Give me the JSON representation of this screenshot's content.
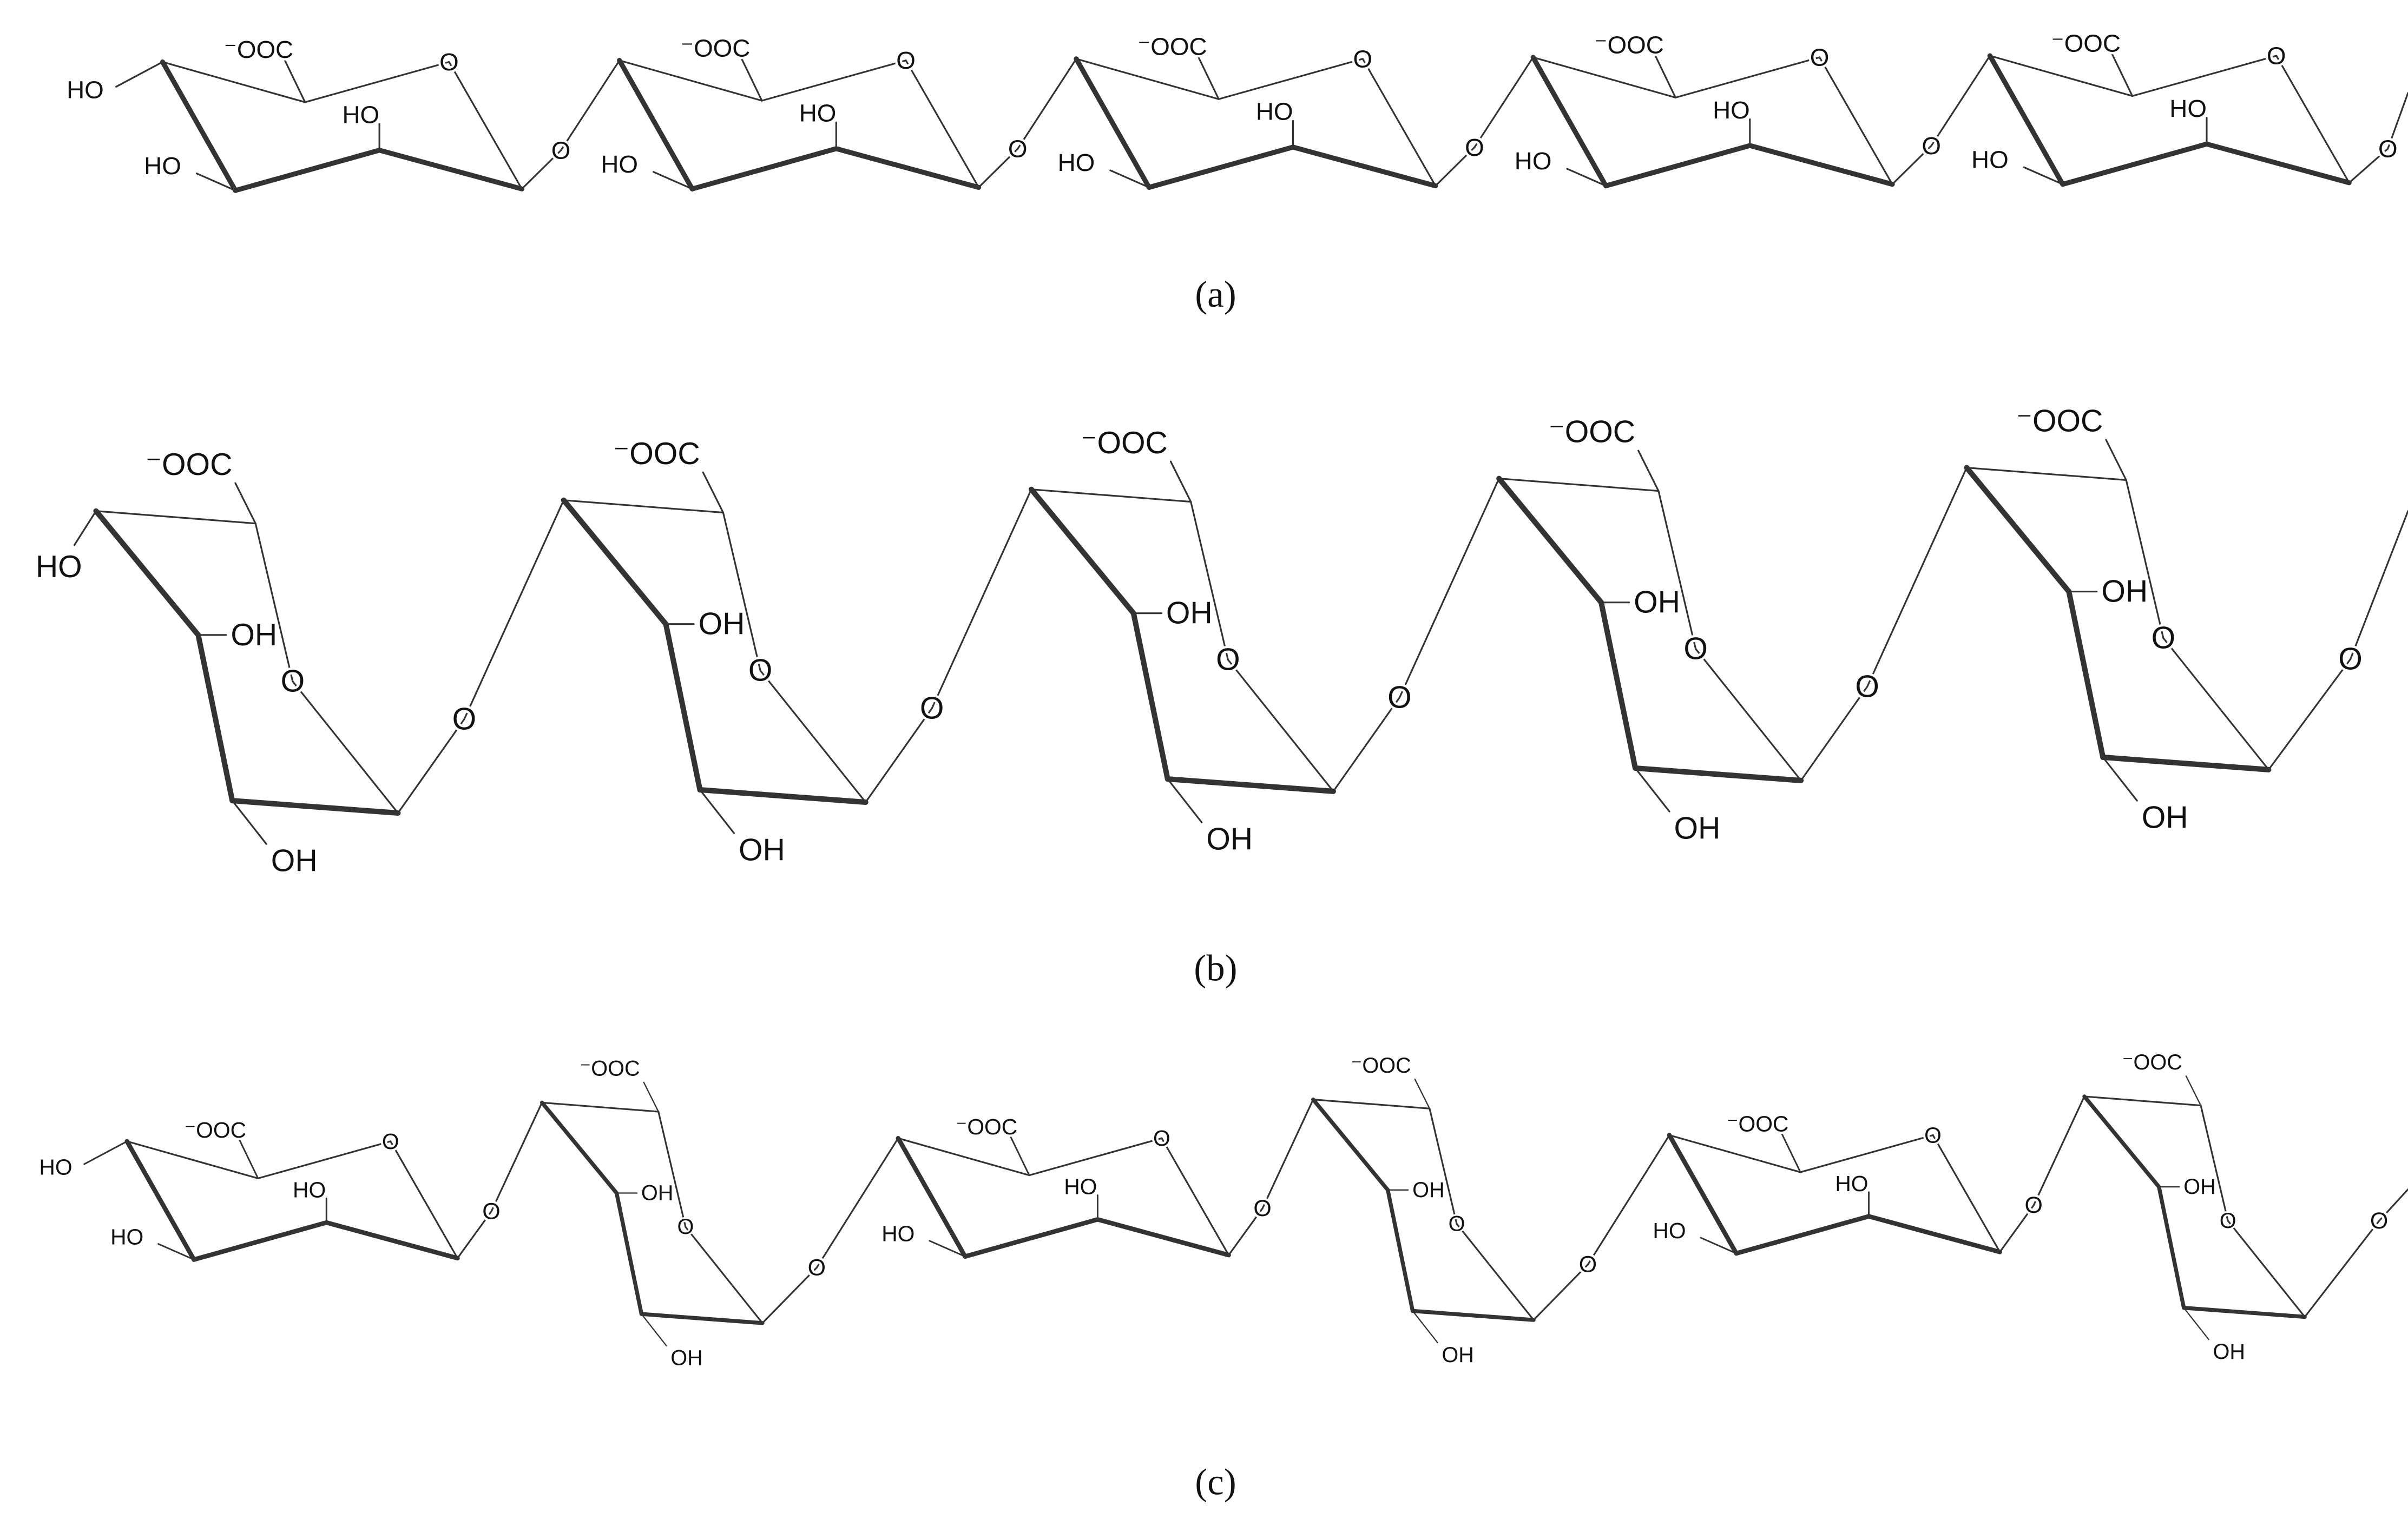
{
  "panels": [
    {
      "caption": "(a)",
      "start": "HO",
      "residues": [
        {
          "carboxylate": "⁻OOC",
          "ring": "O",
          "hydroxyls": [
            "HO",
            "HO"
          ],
          "link": "O"
        },
        {
          "carboxylate": "⁻OOC",
          "ring": "O",
          "hydroxyls": [
            "HO",
            "HO"
          ],
          "link": "O"
        },
        {
          "carboxylate": "⁻OOC",
          "ring": "O",
          "hydroxyls": [
            "HO",
            "HO"
          ],
          "link": "O"
        },
        {
          "carboxylate": "⁻OOC",
          "ring": "O",
          "hydroxyls": [
            "HO",
            "HO"
          ],
          "link": "O"
        },
        {
          "carboxylate": "⁻OOC",
          "ring": "O",
          "hydroxyls": [
            "HO",
            "HO"
          ],
          "link": "O"
        }
      ]
    },
    {
      "caption": "(b)",
      "start": "HO",
      "residues": [
        {
          "carboxylate": "⁻OOC",
          "ring": "O",
          "hydroxyls": [
            "OH",
            "OH"
          ],
          "link": "O"
        },
        {
          "carboxylate": "⁻OOC",
          "ring": "O",
          "hydroxyls": [
            "OH",
            "OH"
          ],
          "link": "O"
        },
        {
          "carboxylate": "⁻OOC",
          "ring": "O",
          "hydroxyls": [
            "OH",
            "OH"
          ],
          "link": "O"
        },
        {
          "carboxylate": "⁻OOC",
          "ring": "O",
          "hydroxyls": [
            "OH",
            "OH"
          ],
          "link": "O"
        },
        {
          "carboxylate": "⁻OOC",
          "ring": "O",
          "hydroxyls": [
            "OH",
            "OH"
          ],
          "link": "O"
        }
      ]
    },
    {
      "caption": "(c)",
      "start": "HO",
      "residues": [
        {
          "carboxylate": "⁻OOC",
          "ring": "O",
          "hydroxyls": [
            "HO",
            "HO"
          ],
          "link": "O"
        },
        {
          "carboxylate": "⁻OOC",
          "ring": "O",
          "hydroxyls": [
            "OH",
            "OH"
          ],
          "link": "O"
        },
        {
          "carboxylate": "⁻OOC",
          "ring": "O",
          "hydroxyls": [
            "HO",
            "HO"
          ],
          "link": "O"
        },
        {
          "carboxylate": "⁻OOC",
          "ring": "O",
          "hydroxyls": [
            "OH",
            "OH"
          ],
          "link": "O"
        },
        {
          "carboxylate": "⁻OOC",
          "ring": "O",
          "hydroxyls": [
            "HO",
            "HO"
          ],
          "link": "O"
        },
        {
          "carboxylate": "⁻OOC",
          "ring": "O",
          "hydroxyls": [
            "OH",
            "OH"
          ],
          "link": "O"
        }
      ]
    }
  ]
}
